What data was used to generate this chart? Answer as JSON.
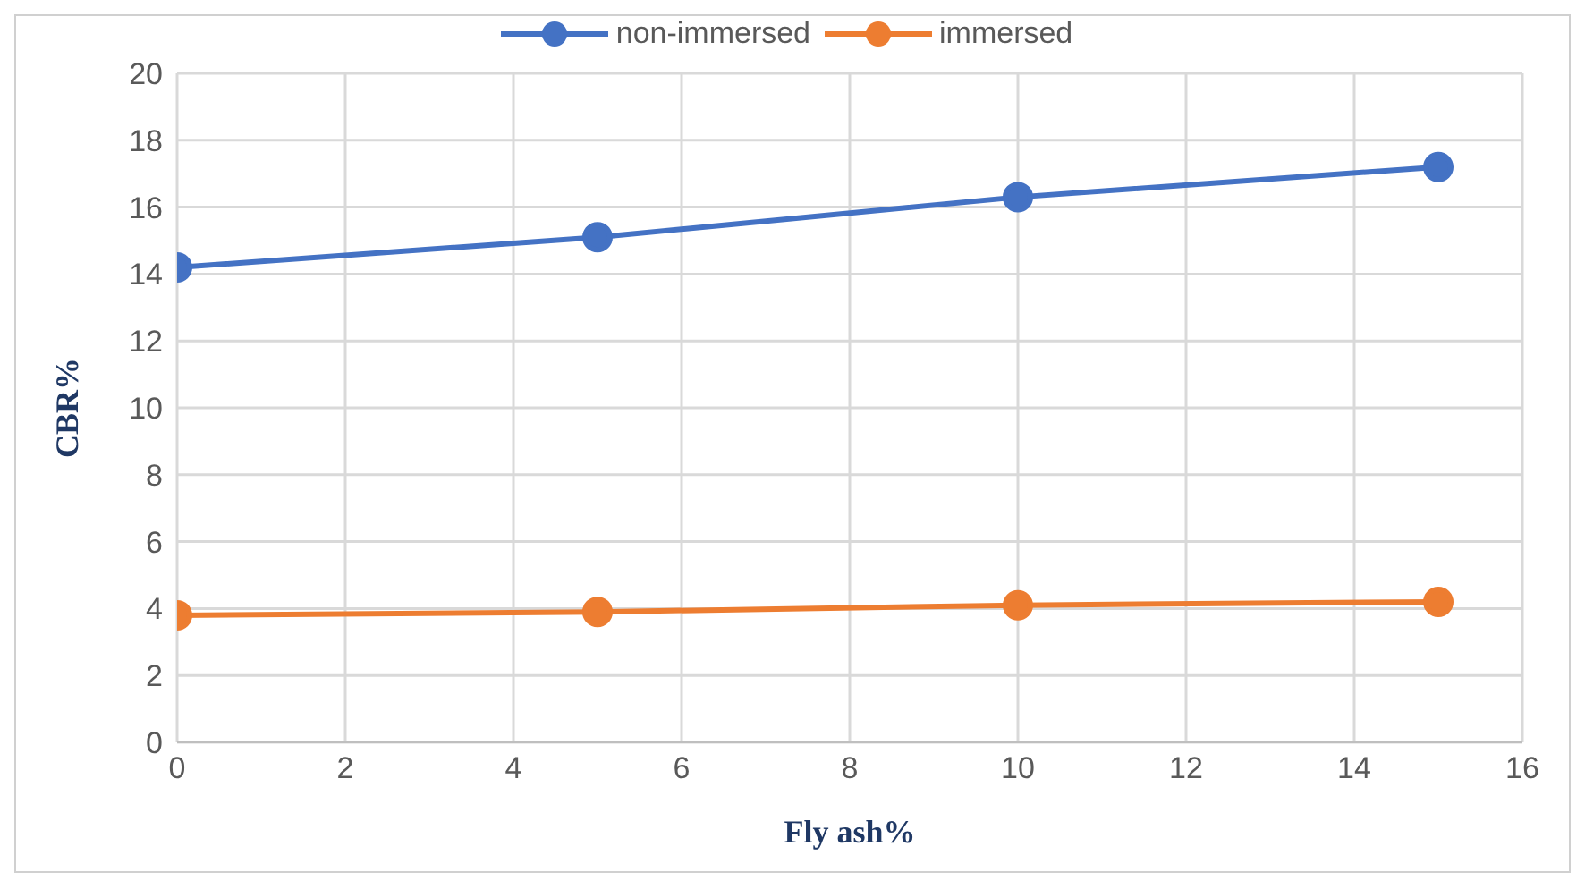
{
  "chart_data": {
    "type": "line",
    "xlabel": "Fly ash%",
    "ylabel": "CBR%",
    "x": [
      0,
      5,
      10,
      15
    ],
    "series": [
      {
        "name": "non-immersed",
        "color": "#4472c4",
        "values": [
          14.2,
          15.1,
          16.3,
          17.2
        ]
      },
      {
        "name": "immersed",
        "color": "#ed7d31",
        "values": [
          3.8,
          3.9,
          4.1,
          4.2
        ]
      }
    ],
    "xlim": [
      0,
      16
    ],
    "xticks": [
      0,
      2,
      4,
      6,
      8,
      10,
      12,
      14,
      16
    ],
    "ylim": [
      0,
      20
    ],
    "yticks": [
      0,
      2,
      4,
      6,
      8,
      10,
      12,
      14,
      16,
      18,
      20
    ],
    "grid": true,
    "legend": "top",
    "marker": "circle",
    "line_style": "solid"
  }
}
